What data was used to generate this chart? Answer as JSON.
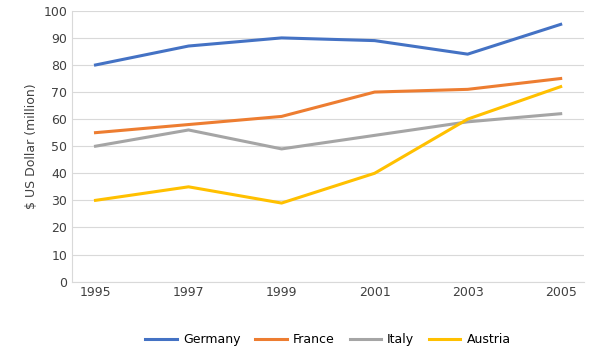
{
  "years": [
    1995,
    1997,
    1999,
    2001,
    2003,
    2005
  ],
  "series": {
    "Germany": [
      80,
      87,
      90,
      89,
      84,
      95
    ],
    "France": [
      55,
      58,
      61,
      70,
      71,
      75
    ],
    "Italy": [
      50,
      56,
      49,
      54,
      59,
      62
    ],
    "Austria": [
      30,
      35,
      29,
      40,
      60,
      72
    ]
  },
  "colors": {
    "Germany": "#4472C4",
    "France": "#ED7D31",
    "Italy": "#A5A5A5",
    "Austria": "#FFC000"
  },
  "ylabel": "$ US Dollar (million)",
  "ylim": [
    0,
    100
  ],
  "yticks": [
    0,
    10,
    20,
    30,
    40,
    50,
    60,
    70,
    80,
    90,
    100
  ],
  "xticks": [
    1995,
    1997,
    1999,
    2001,
    2003,
    2005
  ],
  "legend_order": [
    "Germany",
    "France",
    "Italy",
    "Austria"
  ],
  "background_color": "#FFFFFF",
  "plot_bg_color": "#FFFFFF",
  "grid_color": "#D9D9D9",
  "line_width": 2.2,
  "marker": "none"
}
